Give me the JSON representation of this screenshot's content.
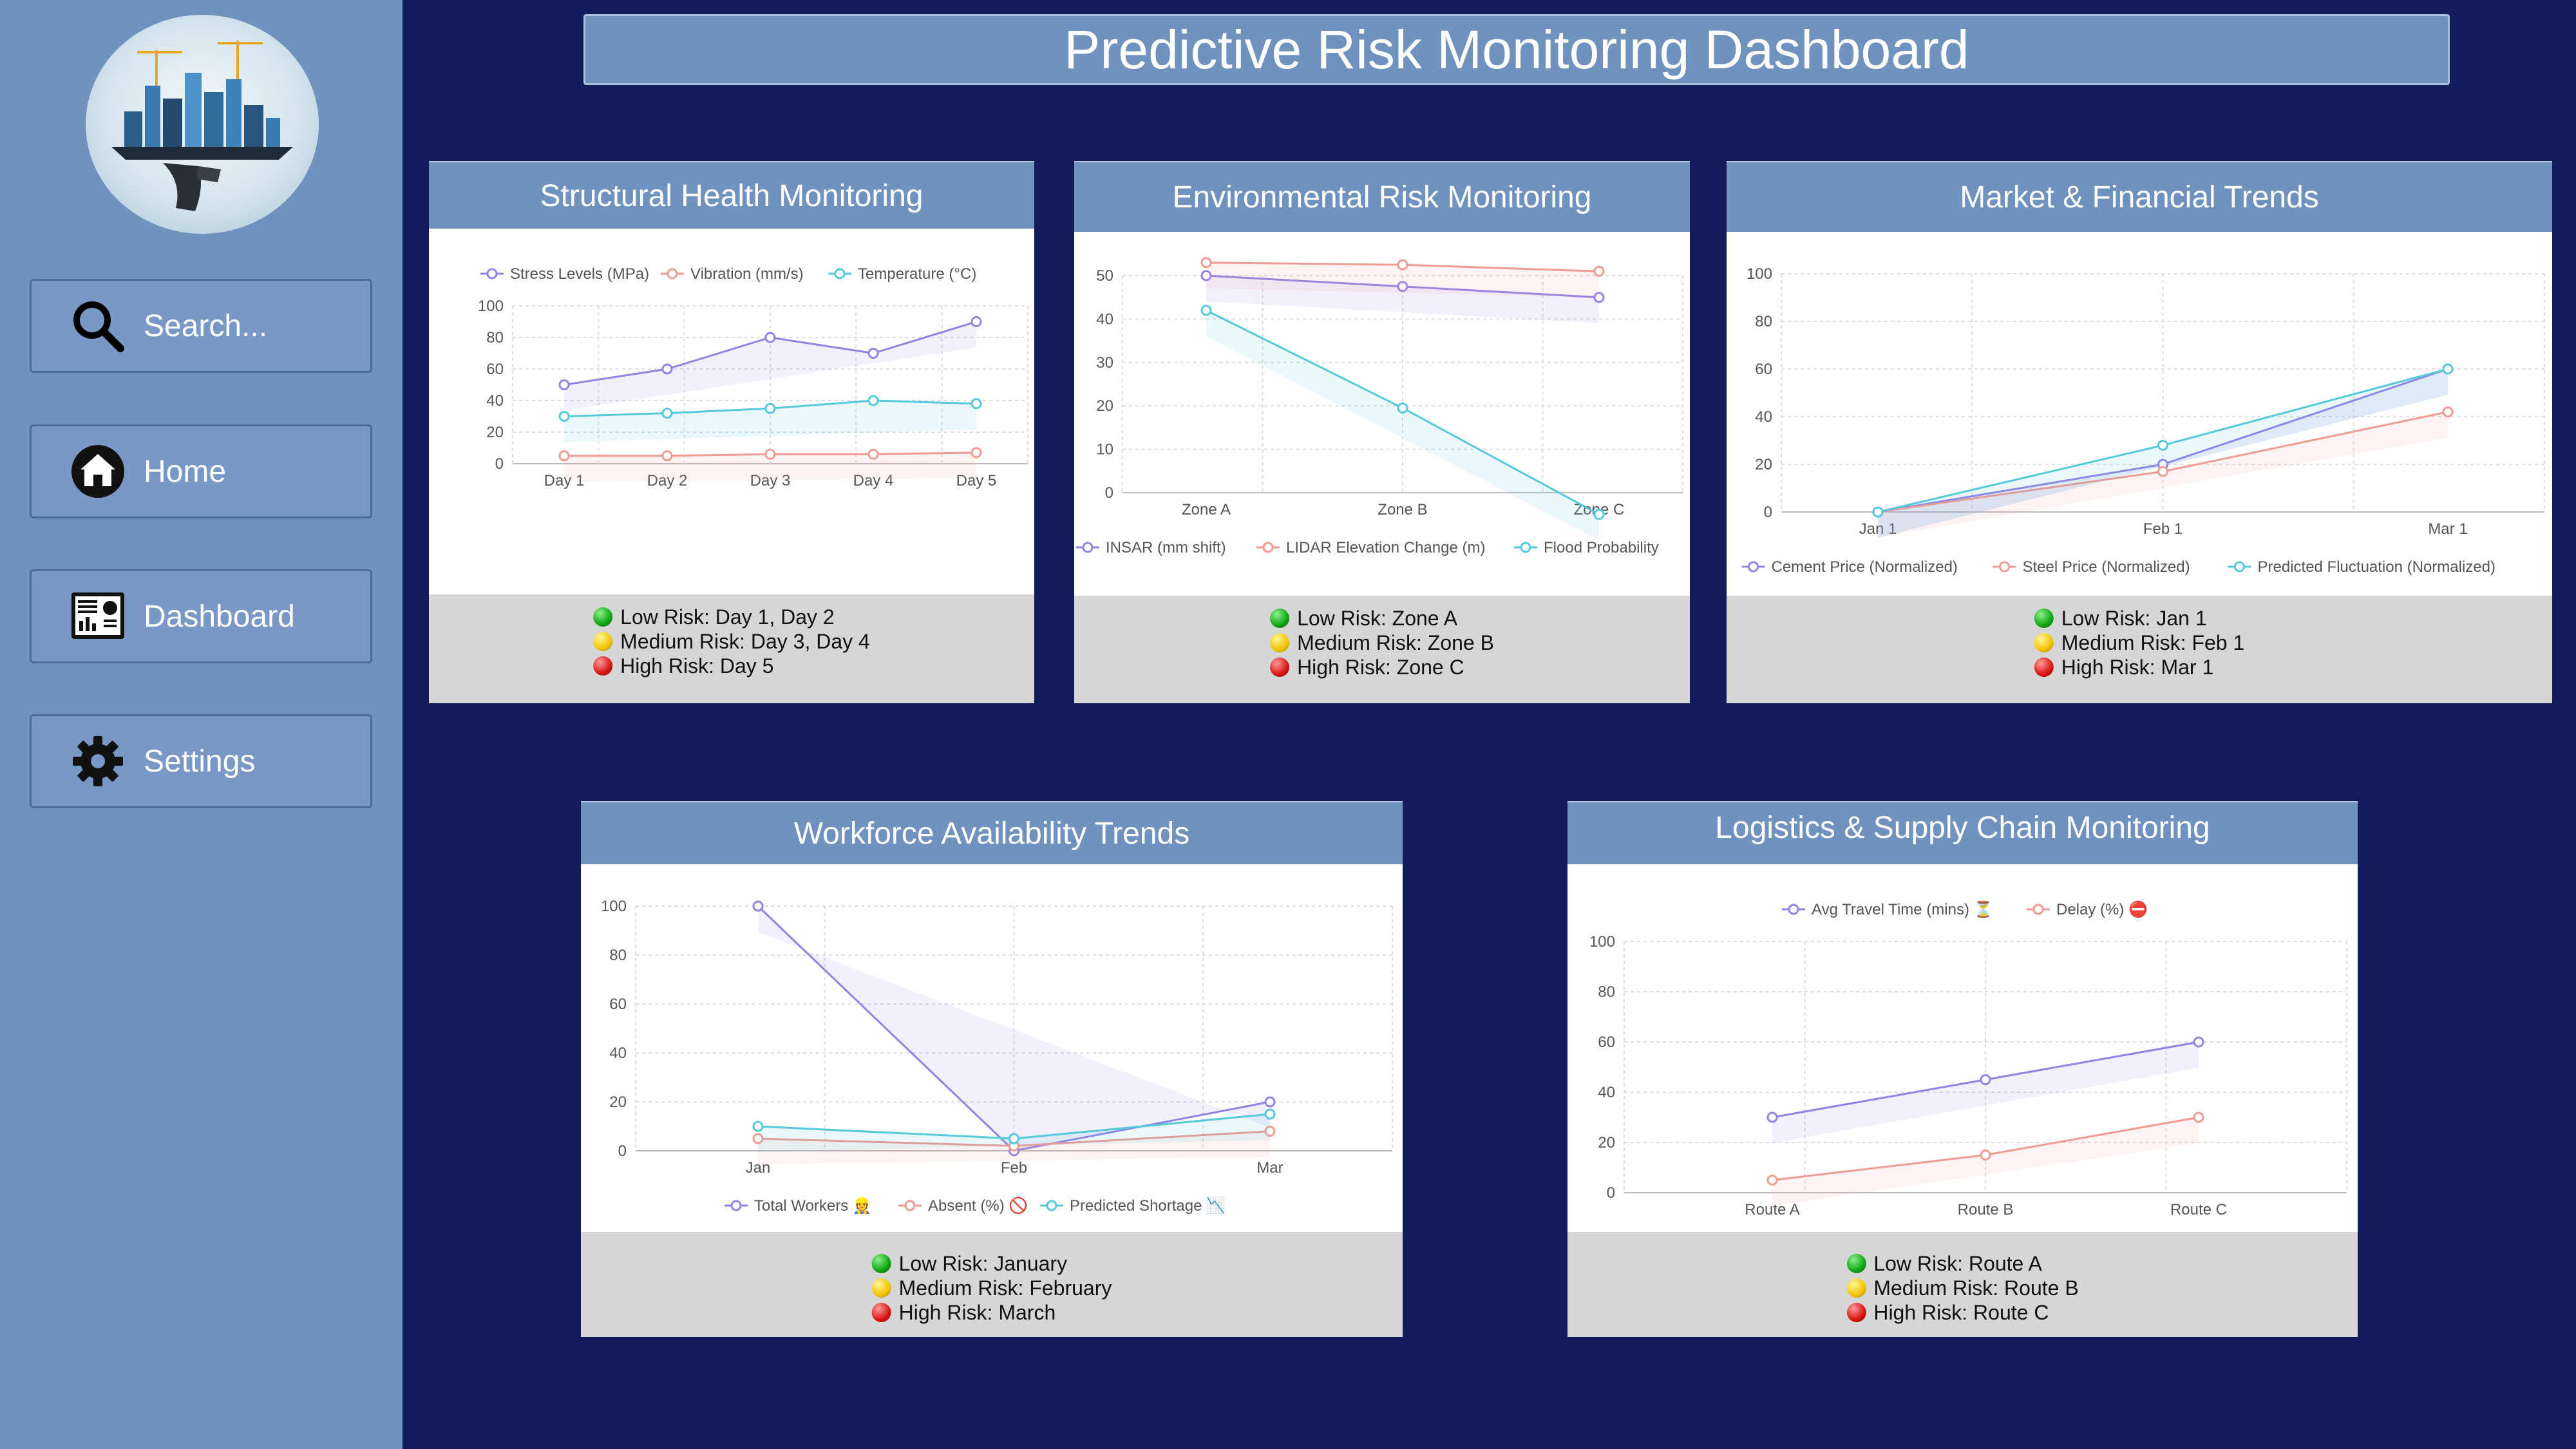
{
  "header": {
    "title": "Predictive Risk Monitoring Dashboard"
  },
  "sidebar": {
    "items": [
      {
        "label": "Search...",
        "icon": "search-icon"
      },
      {
        "label": "Home",
        "icon": "home-icon"
      },
      {
        "label": "Dashboard",
        "icon": "dashboard-icon"
      },
      {
        "label": "Settings",
        "icon": "gear-icon"
      }
    ]
  },
  "colors": {
    "background": "#121c5a",
    "sidebar": "#7092be",
    "panel_header": "#7092be",
    "series_1": "#9381e6",
    "series_2": "#f09a92",
    "series_3": "#55c9dc"
  },
  "panels": [
    {
      "title": "Structural Health Monitoring",
      "risks": [
        {
          "level": "green",
          "text": "Low Risk: Day 1, Day 2"
        },
        {
          "level": "yellow",
          "text": "Medium Risk: Day 3, Day 4"
        },
        {
          "level": "red",
          "text": "High Risk: Day 5"
        }
      ]
    },
    {
      "title": "Environmental Risk Monitoring",
      "risks": [
        {
          "level": "green",
          "text": "Low Risk: Zone A"
        },
        {
          "level": "yellow",
          "text": "Medium Risk: Zone B"
        },
        {
          "level": "red",
          "text": "High Risk: Zone C"
        }
      ]
    },
    {
      "title": "Market & Financial Trends",
      "risks": [
        {
          "level": "green",
          "text": "Low Risk: Jan 1"
        },
        {
          "level": "yellow",
          "text": "Medium Risk: Feb 1"
        },
        {
          "level": "red",
          "text": "High Risk: Mar 1"
        }
      ]
    },
    {
      "title": "Workforce Availability Trends",
      "risks": [
        {
          "level": "green",
          "text": "Low Risk: January"
        },
        {
          "level": "yellow",
          "text": "Medium Risk: February"
        },
        {
          "level": "red",
          "text": "High Risk: March"
        }
      ]
    },
    {
      "title": "Logistics & Supply Chain Monitoring",
      "risks": [
        {
          "level": "green",
          "text": "Low Risk: Route A"
        },
        {
          "level": "yellow",
          "text": "Medium Risk: Route B"
        },
        {
          "level": "red",
          "text": "High Risk: Route C"
        }
      ]
    }
  ],
  "chart_data": [
    {
      "type": "line",
      "categories": [
        "Day 1",
        "Day 2",
        "Day 3",
        "Day 4",
        "Day 5"
      ],
      "ylim": [
        0,
        100
      ],
      "yticks": [
        0,
        20,
        40,
        60,
        80,
        100
      ],
      "legend_position": "top",
      "series": [
        {
          "name": "Stress Levels (MPa)",
          "color": "#9381e6",
          "values": [
            50,
            60,
            80,
            70,
            90
          ]
        },
        {
          "name": "Vibration (mm/s)",
          "color": "#f09a92",
          "values": [
            5,
            5,
            6,
            6,
            7
          ]
        },
        {
          "name": "Temperature (°C)",
          "color": "#55c9dc",
          "values": [
            30,
            32,
            35,
            40,
            38
          ]
        }
      ]
    },
    {
      "type": "line",
      "categories": [
        "Zone A",
        "Zone B",
        "Zone C"
      ],
      "ylim": [
        0,
        50
      ],
      "yticks": [
        0,
        10,
        20,
        30,
        40,
        50
      ],
      "legend_position": "bottom",
      "series": [
        {
          "name": "INSAR (mm shift)",
          "color": "#9381e6",
          "values": [
            50,
            47.5,
            45
          ]
        },
        {
          "name": "LIDAR Elevation Change (m)",
          "color": "#f09a92",
          "values": [
            53,
            52.5,
            51
          ]
        },
        {
          "name": "Flood Probability",
          "color": "#55c9dc",
          "values": [
            42,
            19.5,
            -5
          ]
        }
      ]
    },
    {
      "type": "line",
      "categories": [
        "Jan 1",
        "Feb 1",
        "Mar 1"
      ],
      "ylim": [
        0,
        100
      ],
      "yticks": [
        0,
        20,
        40,
        60,
        80,
        100
      ],
      "legend_position": "bottom",
      "series": [
        {
          "name": "Cement Price (Normalized)",
          "color": "#9381e6",
          "values": [
            0,
            20,
            60
          ]
        },
        {
          "name": "Steel Price (Normalized)",
          "color": "#f09a92",
          "values": [
            0,
            17,
            42
          ]
        },
        {
          "name": "Predicted Fluctuation (Normalized)",
          "color": "#55c9dc",
          "values": [
            0,
            28,
            60
          ]
        }
      ]
    },
    {
      "type": "line",
      "categories": [
        "Jan",
        "Feb",
        "Mar"
      ],
      "ylim": [
        0,
        100
      ],
      "yticks": [
        0,
        20,
        40,
        60,
        80,
        100
      ],
      "legend_position": "bottom",
      "series": [
        {
          "name": "Total Workers 👷",
          "color": "#9381e6",
          "values": [
            100,
            0,
            20
          ]
        },
        {
          "name": "Absent (%) 🚫",
          "color": "#f09a92",
          "values": [
            5,
            2,
            8
          ]
        },
        {
          "name": "Predicted Shortage 📉",
          "color": "#55c9dc",
          "values": [
            10,
            5,
            15
          ]
        }
      ]
    },
    {
      "type": "line",
      "categories": [
        "Route A",
        "Route B",
        "Route C"
      ],
      "ylim": [
        0,
        100
      ],
      "yticks": [
        0,
        20,
        40,
        60,
        80,
        100
      ],
      "legend_position": "top",
      "series": [
        {
          "name": "Avg Travel Time (mins) ⏳",
          "color": "#9381e6",
          "values": [
            30,
            45,
            60
          ]
        },
        {
          "name": "Delay (%) ⛔",
          "color": "#f09a92",
          "values": [
            5,
            15,
            30
          ]
        }
      ]
    }
  ]
}
